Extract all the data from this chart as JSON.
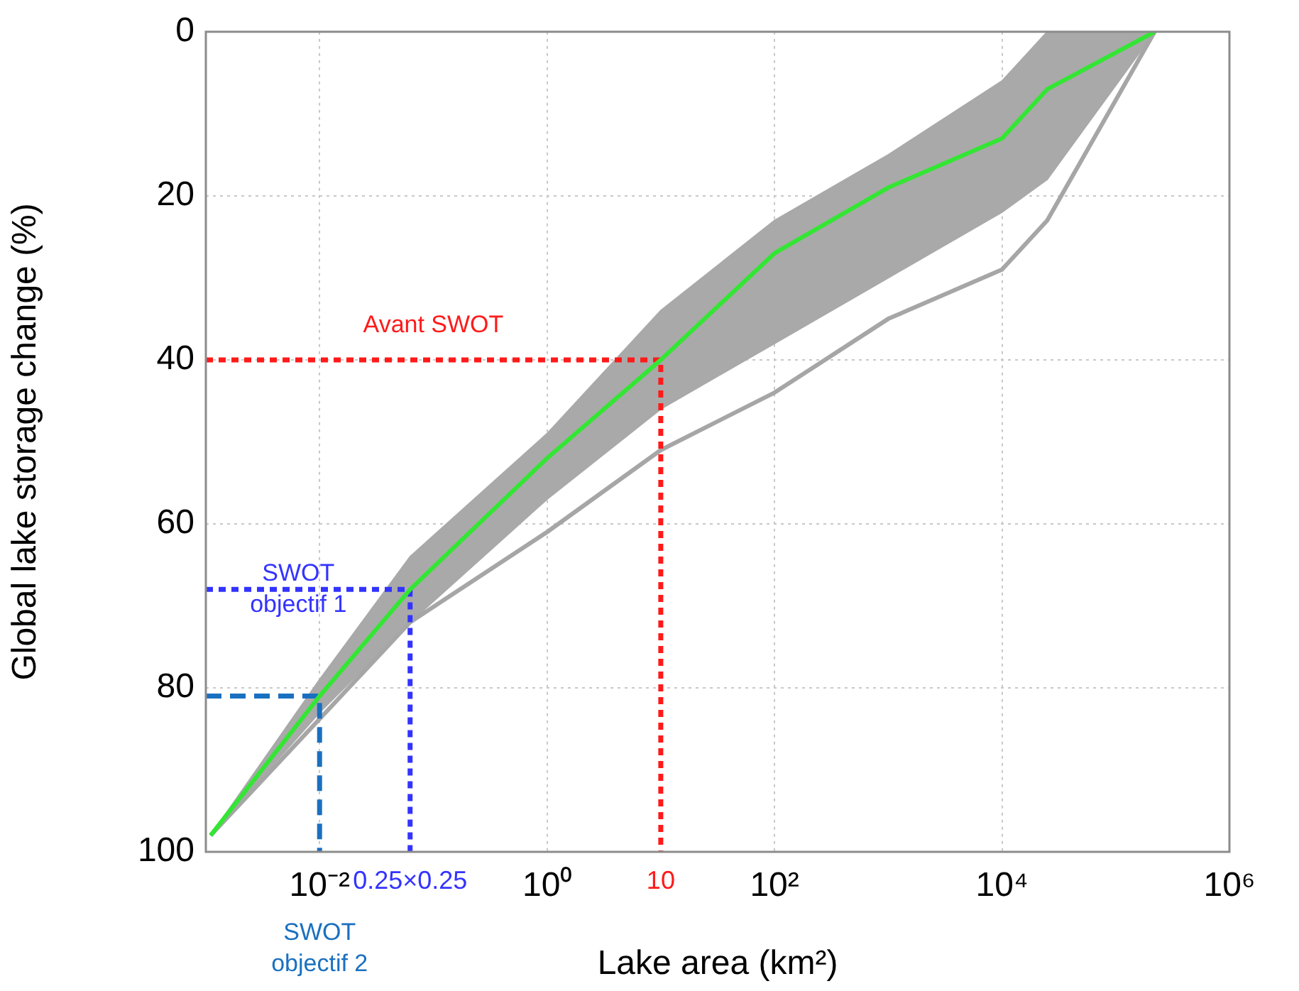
{
  "chart_data": {
    "type": "line",
    "xlabel": "Lake area (km²)",
    "ylabel": "Global lake storage change (%)",
    "log": "x",
    "xlim": [
      0.001,
      1000000
    ],
    "ylim": [
      100,
      0
    ],
    "xticks": [
      {
        "value": 0.01,
        "label": "10⁻²"
      },
      {
        "value": 0.0625,
        "label": "0.25×0.25"
      },
      {
        "value": 1,
        "label": "10⁰"
      },
      {
        "value": 10,
        "label": "10"
      },
      {
        "value": 100,
        "label": "10²"
      },
      {
        "value": 10000,
        "label": "10⁴"
      },
      {
        "value": 1000000,
        "label": "10⁶"
      }
    ],
    "yticks": [
      0,
      20,
      40,
      60,
      80,
      100
    ],
    "grid": true,
    "legend": false,
    "marker": "none",
    "series": [
      {
        "color": "#33e633",
        "x": [
          0.0011,
          0.01,
          0.0625,
          1,
          10,
          100,
          1000,
          10000,
          25000,
          220000
        ],
        "values": [
          98,
          81,
          68,
          52,
          40,
          27,
          19,
          13,
          7,
          0
        ],
        "lower": [
          98,
          83,
          72,
          57,
          46,
          38,
          30,
          22,
          18,
          0
        ],
        "upper": [
          98,
          79,
          64,
          49,
          34,
          23,
          15,
          6,
          0,
          0
        ]
      },
      {
        "color": "#a6a6a6",
        "x": [
          0.0011,
          0.0625,
          1,
          10,
          100,
          1000,
          10000,
          25000,
          220000
        ],
        "values": [
          98,
          72,
          61,
          51,
          44,
          35,
          29,
          23,
          0
        ]
      },
      {
        "color": "#1a70c0",
        "line_style": "dashed",
        "x": [
          0.001,
          0.01,
          0.01
        ],
        "values": [
          81,
          81,
          100
        ]
      },
      {
        "color": "#3333ff",
        "line_style": "dotted",
        "x": [
          0.001,
          0.0625,
          0.0625
        ],
        "values": [
          68,
          68,
          100
        ]
      },
      {
        "color": "#ff1a1a",
        "line_style": "dotted",
        "x": [
          0.001,
          10,
          10
        ],
        "values": [
          40,
          40,
          100
        ]
      }
    ],
    "annotations": [
      "SWOT objectif 2",
      {
        "text": "SWOT objectif 1",
        "x": 0.0065,
        "y": 68
      },
      {
        "text": "Avant SWOT",
        "x": 0.1,
        "y": 40
      }
    ]
  }
}
